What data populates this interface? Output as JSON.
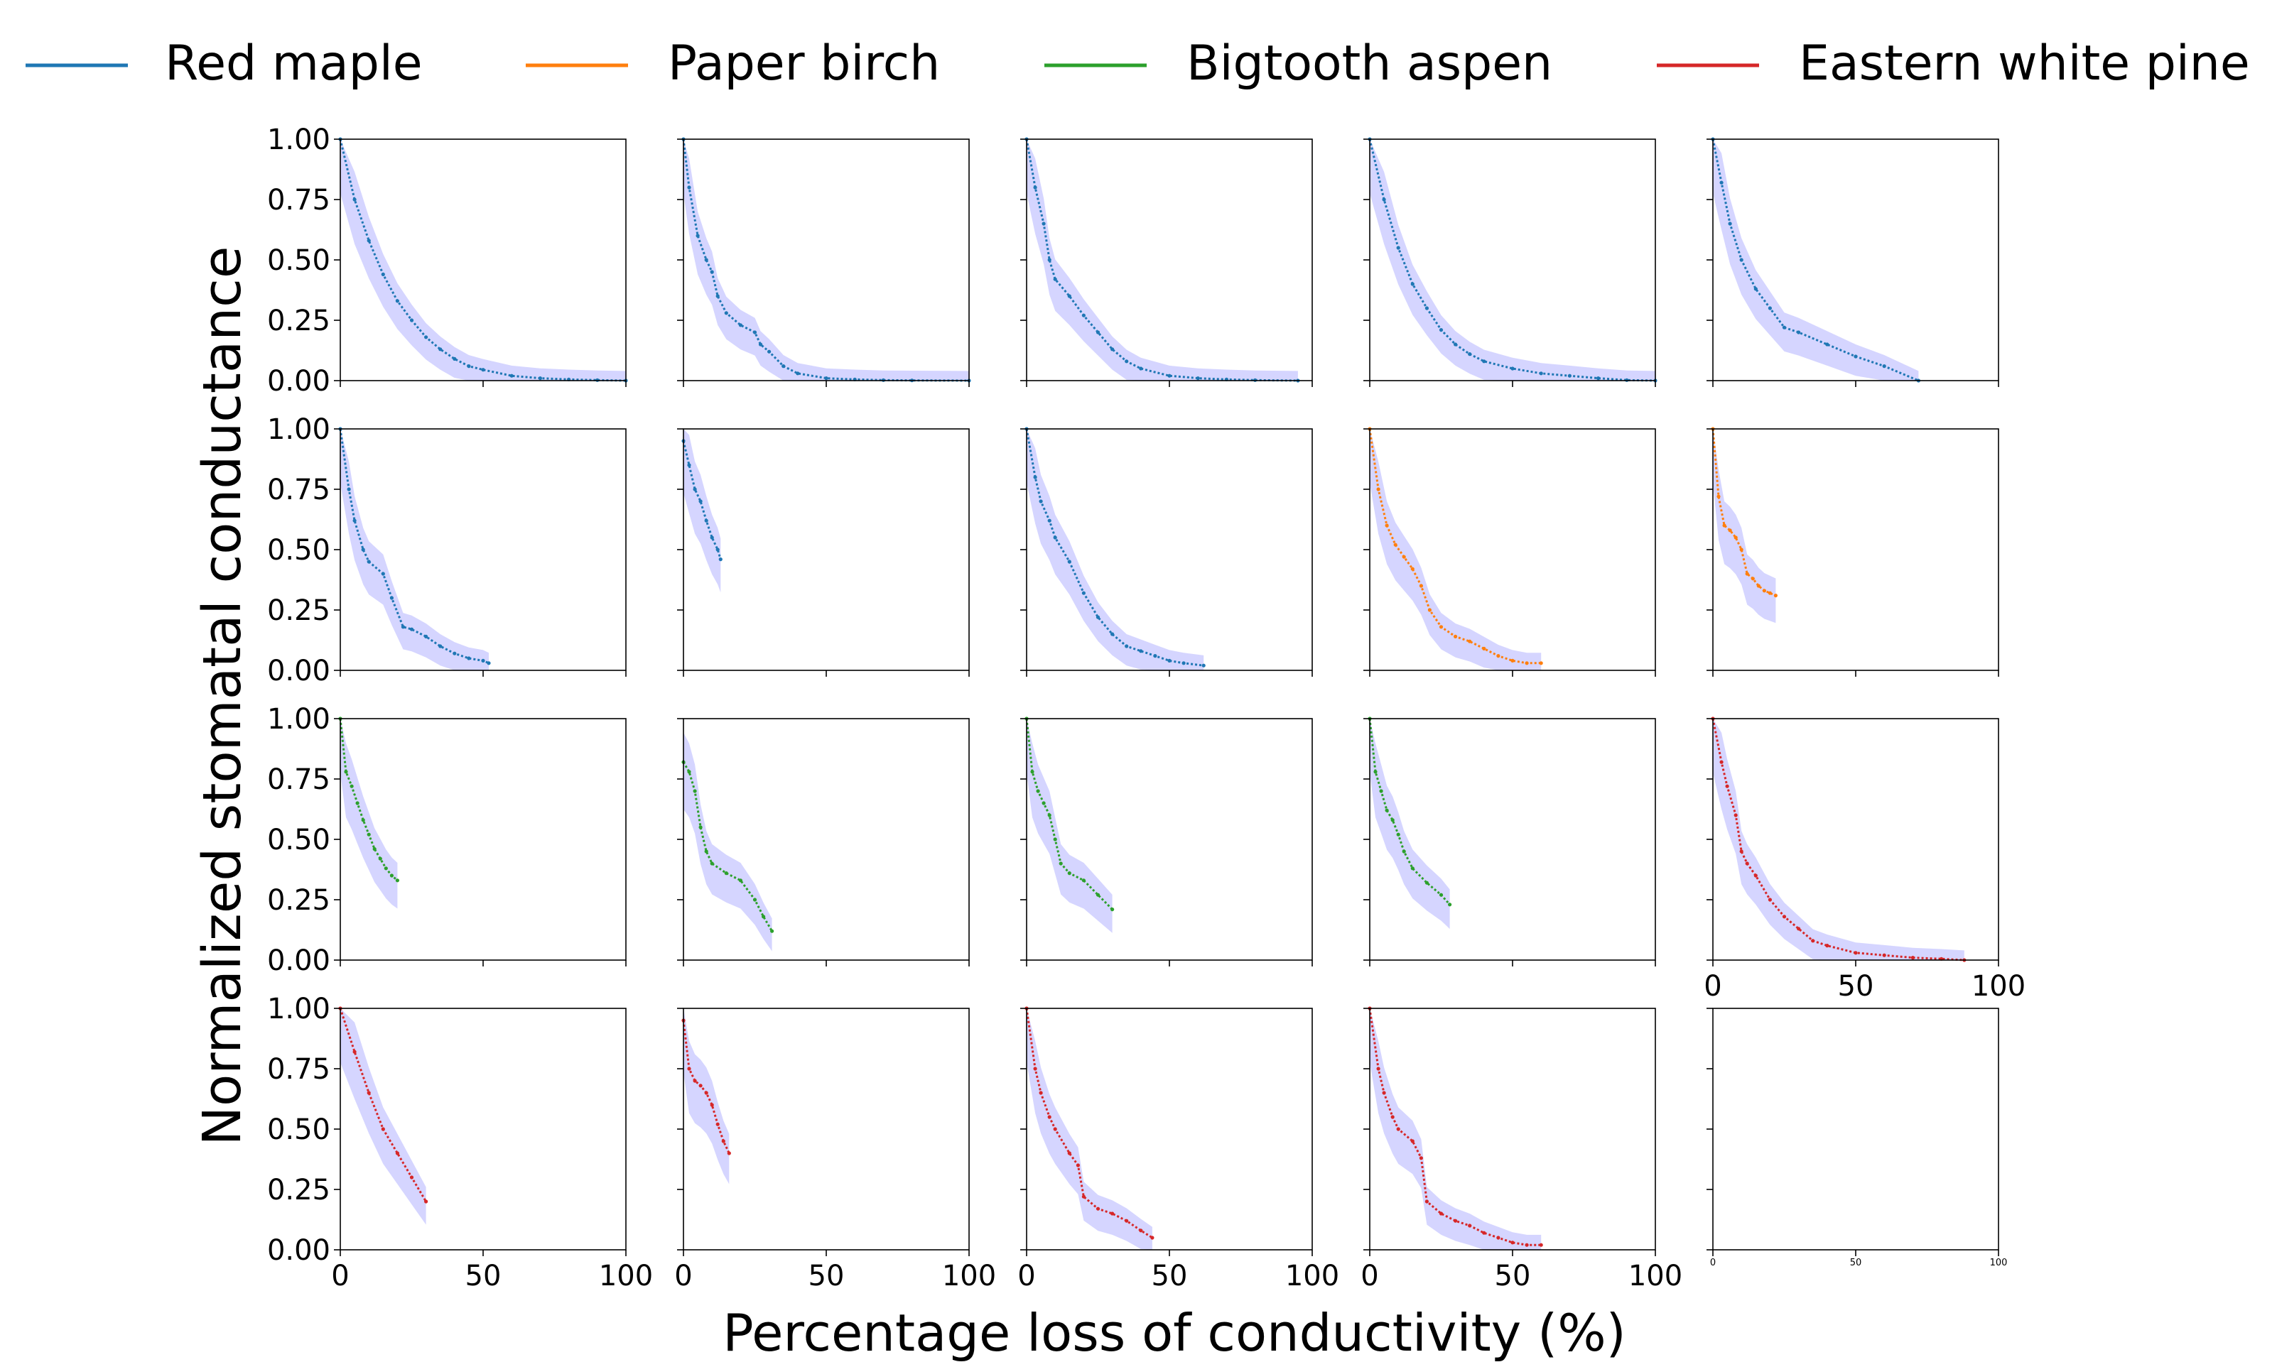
{
  "figure": {
    "ylabel": "Normalized stomatal conductance",
    "xlabel": "Percentage loss of conductivity (%)",
    "legend": [
      {
        "name": "Red maple",
        "color": "#1f77b4"
      },
      {
        "name": "Paper birch",
        "color": "#ff7f0e"
      },
      {
        "name": "Bigtooth aspen",
        "color": "#2ca02c"
      },
      {
        "name": "Eastern white pine",
        "color": "#d62728"
      }
    ],
    "legend_position": "top",
    "band_color": "#b3b3ff"
  },
  "chart_data": [
    {
      "type": "line",
      "series": [
        {
          "name": "Red maple",
          "x": [
            0,
            5,
            10,
            15,
            20,
            25,
            30,
            35,
            40,
            45,
            50,
            60,
            70,
            80,
            90,
            100
          ],
          "y": [
            1.0,
            0.75,
            0.58,
            0.44,
            0.33,
            0.25,
            0.18,
            0.13,
            0.09,
            0.06,
            0.045,
            0.02,
            0.01,
            0.005,
            0.002,
            0.0
          ]
        }
      ],
      "yticks": [
        "1.00",
        "0.75",
        "0.50",
        "0.25",
        "0.00"
      ],
      "xticks": [],
      "xlim": [
        0,
        100
      ],
      "ylim": [
        0,
        1
      ]
    },
    {
      "type": "line",
      "series": [
        {
          "name": "Red maple",
          "x": [
            0,
            2,
            5,
            8,
            10,
            12,
            15,
            20,
            25,
            27,
            30,
            35,
            40,
            50,
            60,
            70,
            80,
            100
          ],
          "y": [
            1.0,
            0.8,
            0.6,
            0.5,
            0.45,
            0.35,
            0.28,
            0.23,
            0.2,
            0.15,
            0.12,
            0.06,
            0.03,
            0.01,
            0.005,
            0.002,
            0.001,
            0.0
          ]
        }
      ],
      "yticks": [],
      "xticks": [],
      "xlim": [
        0,
        100
      ],
      "ylim": [
        0,
        1
      ]
    },
    {
      "type": "line",
      "series": [
        {
          "name": "Red maple",
          "x": [
            0,
            3,
            6,
            8,
            10,
            15,
            20,
            25,
            30,
            35,
            40,
            50,
            60,
            70,
            80,
            95
          ],
          "y": [
            1.0,
            0.8,
            0.65,
            0.5,
            0.42,
            0.35,
            0.27,
            0.2,
            0.13,
            0.08,
            0.05,
            0.02,
            0.01,
            0.005,
            0.002,
            0.0
          ]
        }
      ],
      "yticks": [],
      "xticks": [],
      "xlim": [
        0,
        100
      ],
      "ylim": [
        0,
        1
      ]
    },
    {
      "type": "line",
      "series": [
        {
          "name": "Red maple",
          "x": [
            0,
            5,
            10,
            15,
            20,
            25,
            30,
            35,
            40,
            50,
            60,
            70,
            80,
            90,
            100
          ],
          "y": [
            1.0,
            0.75,
            0.55,
            0.4,
            0.3,
            0.21,
            0.15,
            0.11,
            0.08,
            0.05,
            0.03,
            0.02,
            0.01,
            0.002,
            0.0
          ]
        }
      ],
      "yticks": [],
      "xticks": [],
      "xlim": [
        0,
        100
      ],
      "ylim": [
        0,
        1
      ]
    },
    {
      "type": "line",
      "series": [
        {
          "name": "Red maple",
          "x": [
            0,
            3,
            6,
            10,
            15,
            20,
            25,
            30,
            40,
            50,
            60,
            72
          ],
          "y": [
            1.0,
            0.82,
            0.65,
            0.5,
            0.38,
            0.3,
            0.22,
            0.2,
            0.15,
            0.1,
            0.06,
            0.0
          ]
        }
      ],
      "yticks": [],
      "xticks": [],
      "xlim": [
        0,
        100
      ],
      "ylim": [
        0,
        1
      ]
    },
    {
      "type": "line",
      "series": [
        {
          "name": "Red maple",
          "x": [
            0,
            3,
            5,
            8,
            10,
            15,
            18,
            22,
            25,
            30,
            35,
            40,
            45,
            50,
            52
          ],
          "y": [
            1.0,
            0.75,
            0.62,
            0.5,
            0.45,
            0.4,
            0.3,
            0.18,
            0.17,
            0.14,
            0.1,
            0.07,
            0.05,
            0.04,
            0.03
          ]
        }
      ],
      "yticks": [
        "1.00",
        "0.75",
        "0.50",
        "0.25",
        "0.00"
      ],
      "xticks": [],
      "xlim": [
        0,
        100
      ],
      "ylim": [
        0,
        1
      ]
    },
    {
      "type": "line",
      "series": [
        {
          "name": "Red maple",
          "x": [
            0,
            2,
            4,
            6,
            8,
            10,
            12,
            13
          ],
          "y": [
            0.95,
            0.85,
            0.75,
            0.7,
            0.62,
            0.55,
            0.5,
            0.46
          ]
        }
      ],
      "yticks": [],
      "xticks": [],
      "xlim": [
        0,
        100
      ],
      "ylim": [
        0,
        1
      ]
    },
    {
      "type": "line",
      "series": [
        {
          "name": "Red maple",
          "x": [
            0,
            3,
            5,
            8,
            10,
            15,
            20,
            25,
            30,
            35,
            40,
            45,
            50,
            55,
            62
          ],
          "y": [
            1.0,
            0.8,
            0.7,
            0.62,
            0.55,
            0.45,
            0.32,
            0.22,
            0.15,
            0.1,
            0.08,
            0.06,
            0.04,
            0.03,
            0.02
          ]
        }
      ],
      "yticks": [],
      "xticks": [],
      "xlim": [
        0,
        100
      ],
      "ylim": [
        0,
        1
      ]
    },
    {
      "type": "line",
      "series": [
        {
          "name": "Paper birch",
          "x": [
            0,
            3,
            6,
            9,
            12,
            15,
            18,
            21,
            25,
            30,
            35,
            40,
            45,
            50,
            55,
            60
          ],
          "y": [
            1.0,
            0.75,
            0.6,
            0.52,
            0.47,
            0.42,
            0.35,
            0.25,
            0.18,
            0.14,
            0.12,
            0.09,
            0.06,
            0.04,
            0.03,
            0.03
          ]
        }
      ],
      "yticks": [],
      "xticks": [],
      "xlim": [
        0,
        100
      ],
      "ylim": [
        0,
        1
      ]
    },
    {
      "type": "line",
      "series": [
        {
          "name": "Paper birch",
          "x": [
            0,
            2,
            4,
            6,
            8,
            10,
            12,
            14,
            16,
            18,
            20,
            22
          ],
          "y": [
            1.0,
            0.72,
            0.6,
            0.58,
            0.55,
            0.5,
            0.4,
            0.38,
            0.35,
            0.33,
            0.32,
            0.31
          ]
        }
      ],
      "yticks": [],
      "xticks": [],
      "xlim": [
        0,
        100
      ],
      "ylim": [
        0,
        1
      ]
    },
    {
      "type": "line",
      "series": [
        {
          "name": "Bigtooth aspen",
          "x": [
            0,
            2,
            4,
            6,
            8,
            10,
            12,
            14,
            16,
            18,
            20
          ],
          "y": [
            1.0,
            0.78,
            0.72,
            0.65,
            0.58,
            0.52,
            0.46,
            0.42,
            0.38,
            0.35,
            0.33
          ]
        }
      ],
      "yticks": [
        "1.00",
        "0.75",
        "0.50",
        "0.25",
        "0.00"
      ],
      "xticks": [],
      "xlim": [
        0,
        100
      ],
      "ylim": [
        0,
        1
      ]
    },
    {
      "type": "line",
      "series": [
        {
          "name": "Bigtooth aspen",
          "x": [
            0,
            2,
            4,
            6,
            8,
            10,
            15,
            20,
            25,
            28,
            31
          ],
          "y": [
            0.82,
            0.78,
            0.7,
            0.55,
            0.45,
            0.4,
            0.36,
            0.33,
            0.25,
            0.18,
            0.12
          ]
        }
      ],
      "yticks": [],
      "xticks": [],
      "xlim": [
        0,
        100
      ],
      "ylim": [
        0,
        1
      ]
    },
    {
      "type": "line",
      "series": [
        {
          "name": "Bigtooth aspen",
          "x": [
            0,
            2,
            4,
            6,
            8,
            10,
            12,
            15,
            20,
            25,
            30
          ],
          "y": [
            1.0,
            0.78,
            0.7,
            0.65,
            0.6,
            0.5,
            0.4,
            0.36,
            0.33,
            0.27,
            0.21
          ]
        }
      ],
      "yticks": [],
      "xticks": [],
      "xlim": [
        0,
        100
      ],
      "ylim": [
        0,
        1
      ]
    },
    {
      "type": "line",
      "series": [
        {
          "name": "Bigtooth aspen",
          "x": [
            0,
            2,
            4,
            6,
            8,
            10,
            12,
            15,
            20,
            25,
            28
          ],
          "y": [
            1.0,
            0.78,
            0.7,
            0.62,
            0.58,
            0.52,
            0.45,
            0.38,
            0.32,
            0.27,
            0.23
          ]
        }
      ],
      "yticks": [],
      "xticks": [],
      "xlim": [
        0,
        100
      ],
      "ylim": [
        0,
        1
      ]
    },
    {
      "type": "line",
      "series": [
        {
          "name": "Eastern white pine",
          "x": [
            0,
            3,
            5,
            8,
            10,
            12,
            15,
            20,
            25,
            30,
            35,
            40,
            50,
            60,
            70,
            80,
            88
          ],
          "y": [
            1.0,
            0.82,
            0.72,
            0.6,
            0.45,
            0.4,
            0.35,
            0.25,
            0.18,
            0.13,
            0.08,
            0.06,
            0.03,
            0.02,
            0.01,
            0.005,
            0.0
          ]
        }
      ],
      "yticks": [],
      "xticks": [
        "0",
        "50",
        "100"
      ],
      "xlim": [
        0,
        100
      ],
      "ylim": [
        0,
        1
      ]
    },
    {
      "type": "line",
      "series": [
        {
          "name": "Eastern white pine",
          "x": [
            0,
            5,
            10,
            15,
            20,
            25,
            30
          ],
          "y": [
            1.0,
            0.82,
            0.65,
            0.5,
            0.4,
            0.3,
            0.2
          ]
        }
      ],
      "yticks": [
        "1.00",
        "0.75",
        "0.50",
        "0.25",
        "0.00"
      ],
      "xticks": [
        "0",
        "50",
        "100"
      ],
      "xlim": [
        0,
        100
      ],
      "ylim": [
        0,
        1
      ]
    },
    {
      "type": "line",
      "series": [
        {
          "name": "Eastern white pine",
          "x": [
            0,
            2,
            4,
            6,
            8,
            10,
            12,
            14,
            16
          ],
          "y": [
            0.95,
            0.75,
            0.7,
            0.68,
            0.65,
            0.6,
            0.52,
            0.45,
            0.4
          ]
        }
      ],
      "yticks": [],
      "xticks": [
        "0",
        "50",
        "100"
      ],
      "xlim": [
        0,
        100
      ],
      "ylim": [
        0,
        1
      ]
    },
    {
      "type": "line",
      "series": [
        {
          "name": "Eastern white pine",
          "x": [
            0,
            3,
            5,
            8,
            10,
            15,
            18,
            20,
            25,
            30,
            35,
            40,
            44
          ],
          "y": [
            1.0,
            0.75,
            0.65,
            0.55,
            0.5,
            0.4,
            0.35,
            0.22,
            0.17,
            0.15,
            0.12,
            0.08,
            0.05
          ]
        }
      ],
      "yticks": [],
      "xticks": [
        "0",
        "50",
        "100"
      ],
      "xlim": [
        0,
        100
      ],
      "ylim": [
        0,
        1
      ]
    },
    {
      "type": "line",
      "series": [
        {
          "name": "Eastern white pine",
          "x": [
            0,
            3,
            5,
            8,
            10,
            15,
            18,
            20,
            25,
            30,
            35,
            40,
            45,
            50,
            55,
            60
          ],
          "y": [
            1.0,
            0.75,
            0.65,
            0.55,
            0.5,
            0.45,
            0.38,
            0.2,
            0.15,
            0.12,
            0.1,
            0.07,
            0.05,
            0.03,
            0.02,
            0.02
          ]
        }
      ],
      "yticks": [],
      "xticks": [
        "0",
        "50",
        "100"
      ],
      "xlim": [
        0,
        100
      ],
      "ylim": [
        0,
        1
      ]
    },
    {
      "type": "line",
      "series": [],
      "yticks": [],
      "xticks": [
        "0",
        "50",
        "100"
      ],
      "xlim": [
        0,
        100
      ],
      "ylim": [
        0,
        1
      ]
    }
  ]
}
